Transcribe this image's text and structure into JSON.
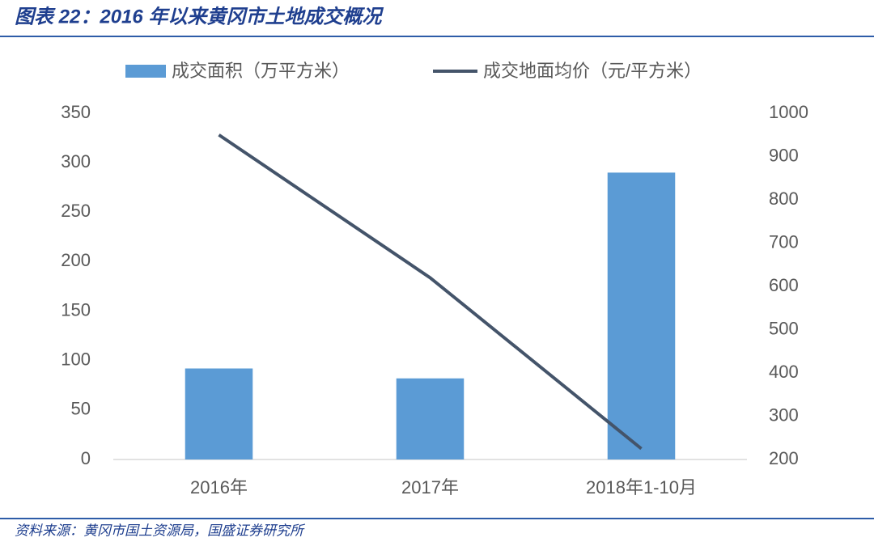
{
  "title": "图表 22：2016 年以来黄冈市土地成交概况",
  "source": "资料来源：黄冈市国土资源局，国盛证券研究所",
  "chart_data": {
    "type": "bar",
    "categories": [
      "2016年",
      "2017年",
      "2018年1-10月"
    ],
    "series": [
      {
        "name": "成交面积（万平方米）",
        "type": "bar",
        "color": "#5b9bd5",
        "values": [
          92,
          82,
          290
        ]
      },
      {
        "name": "成交地面均价（元/平方米）",
        "type": "line",
        "axis": "y2",
        "color": "#44546a",
        "values": [
          950,
          620,
          225
        ]
      }
    ],
    "ylim": [
      0,
      350
    ],
    "yticks": [
      0,
      50,
      100,
      150,
      200,
      250,
      300,
      350
    ],
    "y2lim": [
      200,
      1000
    ],
    "y2ticks": [
      200,
      300,
      400,
      500,
      600,
      700,
      800,
      900,
      1000
    ],
    "grid": false,
    "legend": "top"
  }
}
